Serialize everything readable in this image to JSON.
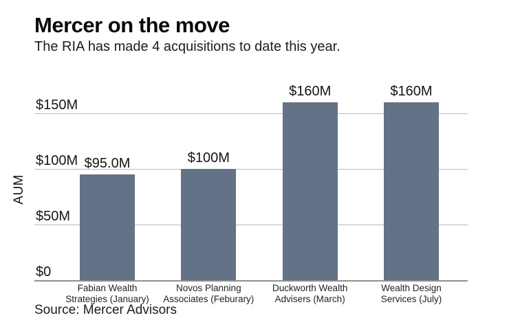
{
  "header": {
    "title": "Mercer on the move",
    "subtitle": "The RIA has made 4 acquisitions to date this year."
  },
  "source_note": "Source: Mercer Advisors",
  "chart_data": {
    "type": "bar",
    "title": "Mercer on the move",
    "subtitle": "The RIA has made 4 acquisitions to date this year.",
    "xlabel": "",
    "ylabel": "AUM",
    "categories": [
      "Fabian Wealth\nStrategies (January)",
      "Novos Planning\nAssociates (Feburary)",
      "Duckworth Wealth\nAdvisers (March)",
      "Wealth Design\nServices (July)"
    ],
    "values": [
      95,
      100,
      160,
      160
    ],
    "value_labels": [
      "$95.0M",
      "$100M",
      "$160M",
      "$160M"
    ],
    "yticks": [
      {
        "value": 0,
        "label": "$0"
      },
      {
        "value": 50,
        "label": "$50M"
      },
      {
        "value": 100,
        "label": "$100M"
      },
      {
        "value": 150,
        "label": "$150M"
      }
    ],
    "ylim": [
      0,
      160
    ],
    "grid": "horizontal",
    "legend_position": "none",
    "colors": {
      "bar": "#637287",
      "gridline": "#b9b9b9",
      "axis": "#8f8f8f",
      "text": "#141414"
    }
  }
}
